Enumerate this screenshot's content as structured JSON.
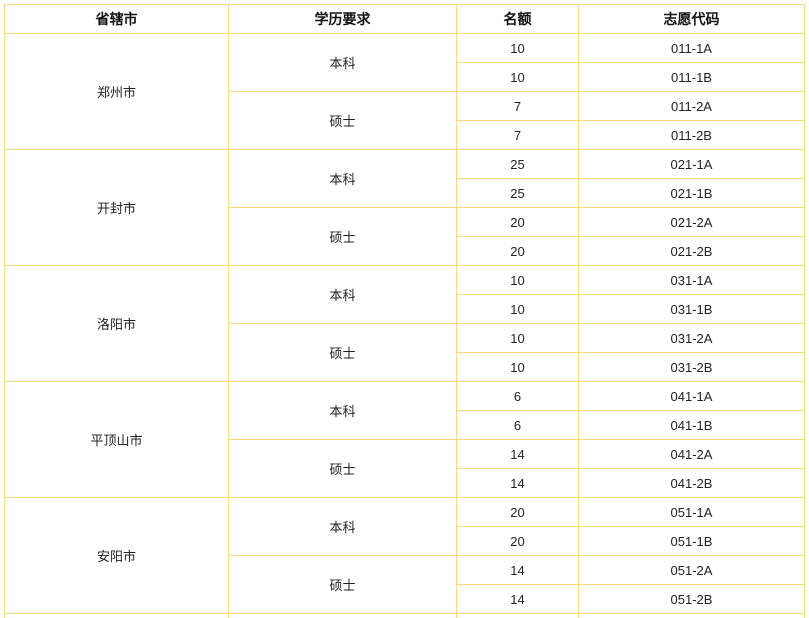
{
  "colors": {
    "border": "#fdd87f",
    "text": "#222222",
    "background": "#ffffff"
  },
  "table": {
    "headers": [
      "省辖市",
      "学历要求",
      "名额",
      "志愿代码"
    ],
    "groups": [
      {
        "city": "郑州市",
        "levels": [
          {
            "level": "本科",
            "rows": [
              {
                "quota": "10",
                "code": "011-1A"
              },
              {
                "quota": "10",
                "code": "011-1B"
              }
            ]
          },
          {
            "level": "硕士",
            "rows": [
              {
                "quota": "7",
                "code": "011-2A"
              },
              {
                "quota": "7",
                "code": "011-2B"
              }
            ]
          }
        ]
      },
      {
        "city": "开封市",
        "levels": [
          {
            "level": "本科",
            "rows": [
              {
                "quota": "25",
                "code": "021-1A"
              },
              {
                "quota": "25",
                "code": "021-1B"
              }
            ]
          },
          {
            "level": "硕士",
            "rows": [
              {
                "quota": "20",
                "code": "021-2A"
              },
              {
                "quota": "20",
                "code": "021-2B"
              }
            ]
          }
        ]
      },
      {
        "city": "洛阳市",
        "levels": [
          {
            "level": "本科",
            "rows": [
              {
                "quota": "10",
                "code": "031-1A"
              },
              {
                "quota": "10",
                "code": "031-1B"
              }
            ]
          },
          {
            "level": "硕士",
            "rows": [
              {
                "quota": "10",
                "code": "031-2A"
              },
              {
                "quota": "10",
                "code": "031-2B"
              }
            ]
          }
        ]
      },
      {
        "city": "平顶山市",
        "levels": [
          {
            "level": "本科",
            "rows": [
              {
                "quota": "6",
                "code": "041-1A"
              },
              {
                "quota": "6",
                "code": "041-1B"
              }
            ]
          },
          {
            "level": "硕士",
            "rows": [
              {
                "quota": "14",
                "code": "041-2A"
              },
              {
                "quota": "14",
                "code": "041-2B"
              }
            ]
          }
        ]
      },
      {
        "city": "安阳市",
        "levels": [
          {
            "level": "本科",
            "rows": [
              {
                "quota": "20",
                "code": "051-1A"
              },
              {
                "quota": "20",
                "code": "051-1B"
              }
            ]
          },
          {
            "level": "硕士",
            "rows": [
              {
                "quota": "14",
                "code": "051-2A"
              },
              {
                "quota": "14",
                "code": "051-2B"
              }
            ]
          }
        ]
      }
    ],
    "partial_next_row_visible": true
  }
}
